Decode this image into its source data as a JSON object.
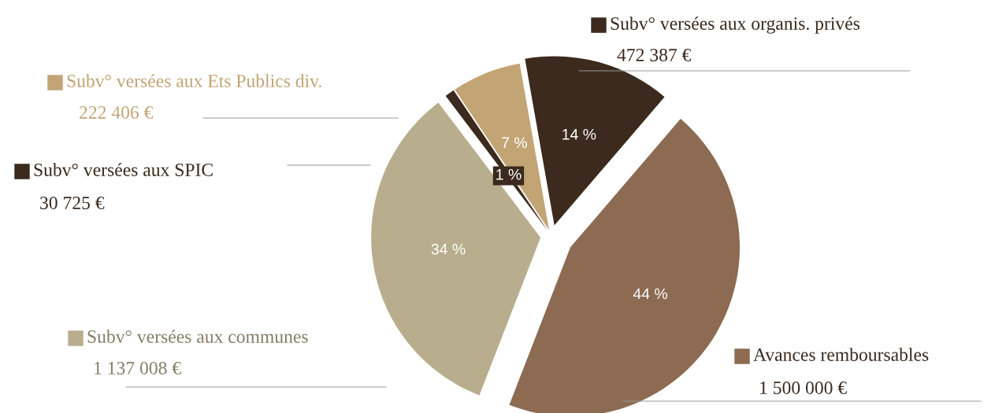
{
  "chart_data": {
    "type": "pie",
    "categories": [
      "Subv° versées aux organis. privés",
      "Avances remboursables",
      "Subv° versées aux communes",
      "Subv° versées aux SPIC",
      "Subv° versées aux Ets Publics div."
    ],
    "values": [
      472387,
      1500000,
      1137008,
      30725,
      222406
    ],
    "colors": [
      "#3b2a1d",
      "#8c6b52",
      "#b8ae8e",
      "#3b2a1d",
      "#c2a475"
    ],
    "value_labels": [
      "472 387 €",
      "1 500 000 €",
      "1 137 008 €",
      "30 725 €",
      "222 406 €"
    ],
    "annotations": [
      {
        "text": "14 %",
        "x": "Subv° versées aux organis. privés"
      },
      {
        "text": "44 %",
        "x": "Avances remboursables"
      },
      {
        "text": "34 %",
        "x": "Subv° versées aux communes"
      },
      {
        "text": "1 %",
        "x": "Subv° versées aux SPIC"
      },
      {
        "text": "7 %",
        "x": "Subv° versées aux Ets Publics div."
      }
    ],
    "legend": "left"
  }
}
